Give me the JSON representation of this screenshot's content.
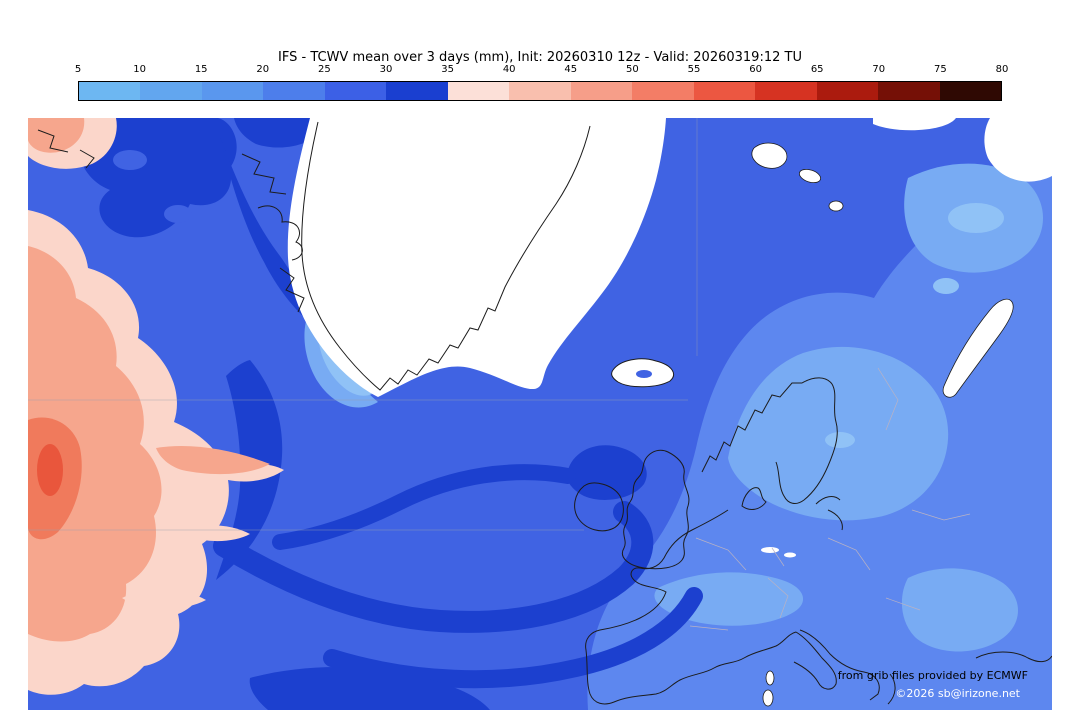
{
  "title": "IFS - TCWV mean over 3 days (mm), Init: 20260310 12z - Valid: 20260319:12 TU",
  "colorbar": {
    "ticks": [
      "5",
      "10",
      "15",
      "20",
      "25",
      "30",
      "35",
      "40",
      "45",
      "50",
      "55",
      "60",
      "65",
      "70",
      "75",
      "80"
    ],
    "colors": [
      "#6db7f2",
      "#62a6ef",
      "#5a97ee",
      "#4d7eeb",
      "#3c60e6",
      "#1a3fd0",
      "#fce0d8",
      "#f9bfae",
      "#f69e89",
      "#f37d66",
      "#ec5741",
      "#d63322",
      "#ab1b0e",
      "#751006",
      "#2f0903"
    ]
  },
  "map_palette": {
    "ocean_base": "#4063e3",
    "europe_light": "#5d87ef",
    "scandinavia_lighter": "#78abf3",
    "lightest_patch": "#90c2f6",
    "dark_band": "#1c40cf",
    "low_white": "#ffffff",
    "pink_fringe": "#fbd6ca",
    "salmon": "#f6a68d",
    "red_core": "#f07a5c",
    "red_spot": "#e9563c",
    "coastline": "#1c1c1c",
    "border_gray": "#b9b2c4",
    "graticule": "#9aa0b0"
  },
  "credits": {
    "line1": "from grib files provided by ECMWF",
    "line2": "©2026 sb@irizone.net"
  },
  "chart_data": {
    "type": "heatmap",
    "title": "IFS - TCWV mean over 3 days (mm)",
    "init": "20260310 12z",
    "valid": "20260319:12 TU",
    "units": "mm",
    "scale_ticks": [
      5,
      10,
      15,
      20,
      25,
      30,
      35,
      40,
      45,
      50,
      55,
      60,
      65,
      70,
      75,
      80
    ],
    "legend_position": "top",
    "grid": false,
    "regions": [
      {
        "area": "greenland-ice-sheet",
        "approx_value_mm": "<5 (white, below scale minimum)"
      },
      {
        "area": "west-atlantic-left-edge",
        "approx_value_mm": "35-55 (pink/salmon with red core)"
      },
      {
        "area": "central-north-atlantic-swirls",
        "approx_value_mm": "30-35 (dark blue bands)"
      },
      {
        "area": "mid-atlantic-ocean",
        "approx_value_mm": "25-30 (medium blue)"
      },
      {
        "area": "western-europe-uk-france",
        "approx_value_mm": "20-25 (light blue)"
      },
      {
        "area": "scandinavia-baltic-east-europe",
        "approx_value_mm": "15-20 (lighter blue patches)"
      },
      {
        "area": "arctic-northeast-islands",
        "approx_value_mm": "<5 (white patches)"
      }
    ]
  }
}
